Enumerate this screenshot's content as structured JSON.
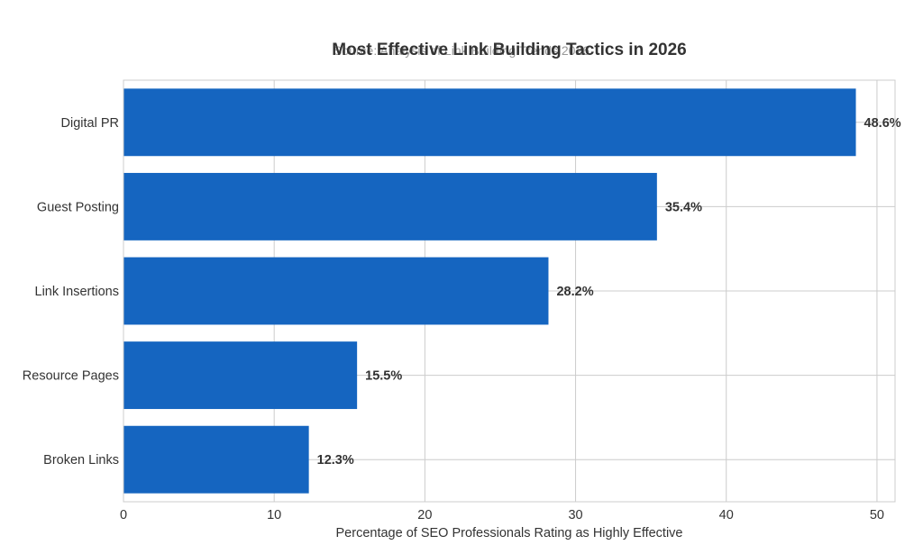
{
  "chart_data": {
    "type": "bar",
    "orientation": "horizontal",
    "title": "Most Effective Link Building Tactics in 2026",
    "subtitle": "Source: Analysis of Link Building Trends 2026",
    "xlabel": "Percentage of SEO Professionals Rating as Highly Effective",
    "ylabel": "",
    "categories": [
      "Digital PR",
      "Guest Posting",
      "Link Insertions",
      "Resource Pages",
      "Broken Links"
    ],
    "values": [
      48.6,
      35.4,
      28.2,
      15.5,
      12.3
    ],
    "data_labels": [
      "48.6%",
      "35.4%",
      "28.2%",
      "15.5%",
      "12.3%"
    ],
    "xlim": [
      0,
      51.2
    ],
    "xticks": [
      0,
      10,
      20,
      30,
      40,
      50
    ],
    "grid": true,
    "bar_color": "#1565c0",
    "grid_color": "#cccccc",
    "legend": "none"
  }
}
